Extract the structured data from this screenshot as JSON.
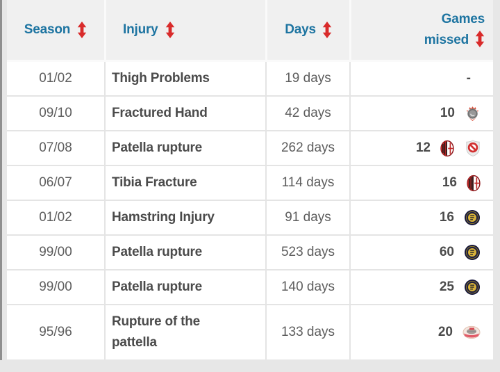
{
  "table": {
    "columns": [
      {
        "key": "season",
        "label": "Season",
        "sortable": true
      },
      {
        "key": "injury",
        "label": "Injury",
        "sortable": true
      },
      {
        "key": "days",
        "label": "Days",
        "sortable": true
      },
      {
        "key": "games_missed",
        "label": "Games missed",
        "sortable": true
      }
    ],
    "rows": [
      {
        "season": "01/02",
        "injury": "Thigh Problems",
        "days": "19 days",
        "games_missed": "-",
        "clubs": []
      },
      {
        "season": "09/10",
        "injury": "Fractured Hand",
        "days": "42 days",
        "games_missed": "10",
        "clubs": [
          "corinthians"
        ]
      },
      {
        "season": "07/08",
        "injury": "Patella rupture",
        "days": "262 days",
        "games_missed": "12",
        "clubs": [
          "ac-milan",
          "without-club"
        ]
      },
      {
        "season": "06/07",
        "injury": "Tibia Fracture",
        "days": "114 days",
        "games_missed": "16",
        "clubs": [
          "ac-milan"
        ]
      },
      {
        "season": "01/02",
        "injury": "Hamstring Injury",
        "days": "91 days",
        "games_missed": "16",
        "clubs": [
          "inter-milan"
        ]
      },
      {
        "season": "99/00",
        "injury": "Patella rupture",
        "days": "523 days",
        "games_missed": "60",
        "clubs": [
          "inter-milan"
        ]
      },
      {
        "season": "99/00",
        "injury": "Patella rupture",
        "days": "140 days",
        "games_missed": "25",
        "clubs": [
          "inter-milan"
        ]
      },
      {
        "season": "95/96",
        "injury": "Rupture of the pattella",
        "days": "133 days",
        "games_missed": "20",
        "clubs": [
          "psv"
        ]
      }
    ]
  },
  "icons": {
    "sort": "sort-updown-icon",
    "club_badges": [
      "corinthians-badge-icon",
      "ac-milan-badge-icon",
      "without-club-badge-icon",
      "inter-milan-badge-icon",
      "psv-badge-icon"
    ]
  },
  "colors": {
    "header_text": "#1d74a1",
    "sort_arrow": "#d92b2b",
    "body_text": "#5d5d5d",
    "bold_text": "#4b4b4b",
    "header_bg": "#f0f0f0",
    "row_bg": "#ffffff",
    "page_bg": "#e7e7e7",
    "border": "#e4e4e4"
  }
}
